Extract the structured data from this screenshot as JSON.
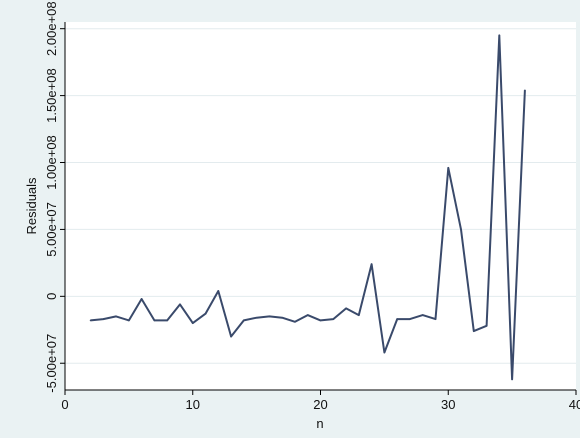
{
  "chart_data": {
    "type": "line",
    "title": "",
    "xlabel": "n",
    "ylabel": "Residuals",
    "xlim": [
      0,
      40
    ],
    "ylim": [
      -70000000,
      205000000
    ],
    "xticks": [
      0,
      10,
      20,
      30,
      40
    ],
    "xtick_labels": [
      "0",
      "10",
      "20",
      "30",
      "40"
    ],
    "yticks": [
      -50000000,
      0,
      50000000,
      100000000,
      150000000,
      200000000
    ],
    "ytick_labels": [
      "-5.00e+07",
      "0",
      "5.00e+07",
      "1.00e+08",
      "1.50e+08",
      "2.00e+08"
    ],
    "grid": "horizontal",
    "legend": "none",
    "colors": {
      "line": "#3a4a6b",
      "plot_bg": "#ffffff",
      "page_bg": "#eaf2f3",
      "grid": "#e3ebee"
    },
    "series": [
      {
        "x": [
          2,
          3,
          4,
          5,
          6,
          7,
          8,
          9,
          10,
          11,
          12,
          13,
          14,
          15,
          16,
          17,
          18,
          19,
          20,
          21,
          22,
          23,
          24,
          25,
          26,
          27,
          28,
          29,
          30,
          31,
          32,
          33,
          34,
          35,
          36
        ],
        "y": [
          -18000000,
          -17000000,
          -15000000,
          -18000000,
          -2000000,
          -18000000,
          -18000000,
          -6000000,
          -20000000,
          -13000000,
          4000000,
          -30000000,
          -18000000,
          -16000000,
          -15000000,
          -16000000,
          -19000000,
          -14000000,
          -18000000,
          -17000000,
          -9000000,
          -14000000,
          24000000,
          -42000000,
          -17000000,
          -17000000,
          -14000000,
          -17000000,
          96000000,
          50000000,
          -26000000,
          -22000000,
          195000000,
          -62000000,
          154000000
        ]
      }
    ]
  }
}
